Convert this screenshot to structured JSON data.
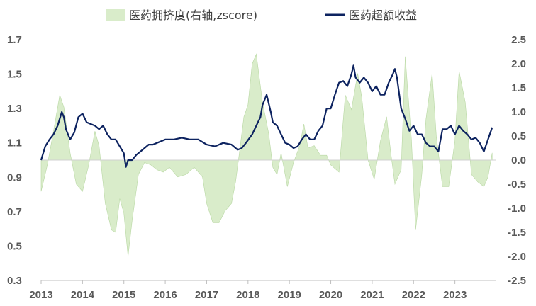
{
  "chart_data": {
    "type": "line",
    "title": "",
    "xlabel": "",
    "ylabel_left": "",
    "ylabel_right": "",
    "grid": false,
    "legend_position": "top",
    "x_ticks": [
      "2013",
      "2014",
      "2015",
      "2016",
      "2017",
      "2018",
      "2019",
      "2020",
      "2021",
      "2022",
      "2023"
    ],
    "y_left": {
      "ticks": [
        "0.3",
        "0.5",
        "0.7",
        "0.9",
        "1.1",
        "1.3",
        "1.5",
        "1.7"
      ],
      "range": [
        0.3,
        1.7
      ]
    },
    "y_right": {
      "ticks": [
        "-2.5",
        "-2.0",
        "-1.5",
        "-1.0",
        "-0.5",
        "0.0",
        "0.5",
        "1.0",
        "1.5",
        "2.0",
        "2.5"
      ],
      "range": [
        -2.5,
        2.5
      ]
    },
    "x_range": [
      2013.0,
      2024.0
    ],
    "series": [
      {
        "name": "医药拥挤度(右轴,zscore)",
        "type": "area",
        "axis": "right",
        "color": "#d9ecca",
        "x": [
          2013.0,
          2013.15,
          2013.3,
          2013.45,
          2013.55,
          2013.7,
          2013.85,
          2014.0,
          2014.15,
          2014.3,
          2014.4,
          2014.55,
          2014.7,
          2014.8,
          2014.9,
          2015.0,
          2015.1,
          2015.2,
          2015.35,
          2015.5,
          2015.65,
          2015.8,
          2015.95,
          2016.1,
          2016.3,
          2016.5,
          2016.7,
          2016.9,
          2017.0,
          2017.15,
          2017.3,
          2017.45,
          2017.6,
          2017.7,
          2017.8,
          2017.9,
          2018.0,
          2018.1,
          2018.2,
          2018.35,
          2018.5,
          2018.6,
          2018.7,
          2018.8,
          2018.95,
          2019.1,
          2019.25,
          2019.35,
          2019.45,
          2019.6,
          2019.75,
          2019.9,
          2020.0,
          2020.2,
          2020.35,
          2020.5,
          2020.65,
          2020.75,
          2020.9,
          2021.05,
          2021.2,
          2021.35,
          2021.45,
          2021.55,
          2021.7,
          2021.8,
          2021.95,
          2022.05,
          2022.2,
          2022.3,
          2022.45,
          2022.55,
          2022.7,
          2022.85,
          2023.0,
          2023.1,
          2023.25,
          2023.4,
          2023.55,
          2023.7,
          2023.8,
          2023.9
        ],
        "values": [
          -0.65,
          -0.1,
          0.6,
          1.35,
          1.1,
          0.15,
          -0.5,
          -0.65,
          -0.1,
          0.6,
          0.3,
          -0.9,
          -1.45,
          -1.5,
          -0.8,
          -1.1,
          -2.0,
          -1.25,
          -0.3,
          -0.05,
          -0.1,
          -0.2,
          -0.25,
          -0.15,
          -0.35,
          -0.3,
          -0.15,
          -0.35,
          -0.9,
          -1.3,
          -1.3,
          -1.05,
          -0.9,
          -0.45,
          0.2,
          0.9,
          1.15,
          2.0,
          2.2,
          1.2,
          0.55,
          -0.15,
          -0.3,
          0.15,
          -0.55,
          -0.05,
          0.3,
          0.75,
          0.25,
          0.3,
          0.1,
          0.1,
          -0.1,
          -0.25,
          1.35,
          1.05,
          1.8,
          1.3,
          0.0,
          -0.4,
          0.4,
          0.9,
          0.15,
          -0.5,
          -0.2,
          2.15,
          0.4,
          -1.45,
          -0.3,
          0.85,
          1.8,
          0.5,
          -0.55,
          -0.55,
          0.4,
          1.85,
          1.2,
          -0.3,
          -0.45,
          -0.55,
          -0.35,
          0.15
        ]
      },
      {
        "name": "医药超额收益",
        "type": "line",
        "axis": "left",
        "color": "#0d2360",
        "x": [
          2013.0,
          2013.1,
          2013.2,
          2013.3,
          2013.4,
          2013.5,
          2013.55,
          2013.6,
          2013.7,
          2013.8,
          2013.9,
          2014.0,
          2014.1,
          2014.2,
          2014.3,
          2014.4,
          2014.5,
          2014.6,
          2014.7,
          2014.8,
          2014.9,
          2015.0,
          2015.05,
          2015.1,
          2015.2,
          2015.3,
          2015.4,
          2015.5,
          2015.6,
          2015.7,
          2015.8,
          2015.9,
          2016.0,
          2016.2,
          2016.4,
          2016.6,
          2016.8,
          2017.0,
          2017.2,
          2017.4,
          2017.6,
          2017.75,
          2017.85,
          2017.95,
          2018.1,
          2018.2,
          2018.3,
          2018.35,
          2018.45,
          2018.55,
          2018.6,
          2018.7,
          2018.8,
          2018.9,
          2019.0,
          2019.1,
          2019.2,
          2019.3,
          2019.4,
          2019.5,
          2019.6,
          2019.7,
          2019.8,
          2019.9,
          2020.0,
          2020.1,
          2020.2,
          2020.3,
          2020.4,
          2020.5,
          2020.55,
          2020.6,
          2020.7,
          2020.8,
          2020.9,
          2021.0,
          2021.1,
          2021.2,
          2021.3,
          2021.4,
          2021.5,
          2021.55,
          2021.6,
          2021.7,
          2021.8,
          2021.9,
          2022.0,
          2022.1,
          2022.2,
          2022.3,
          2022.4,
          2022.5,
          2022.6,
          2022.7,
          2022.8,
          2022.9,
          2023.0,
          2023.1,
          2023.2,
          2023.3,
          2023.4,
          2023.5,
          2023.6,
          2023.7,
          2023.8,
          2023.9
        ],
        "values": [
          1.0,
          1.08,
          1.12,
          1.15,
          1.2,
          1.28,
          1.25,
          1.18,
          1.12,
          1.16,
          1.25,
          1.27,
          1.22,
          1.21,
          1.2,
          1.18,
          1.2,
          1.15,
          1.12,
          1.12,
          1.08,
          1.04,
          0.96,
          1.0,
          1.0,
          1.03,
          1.05,
          1.07,
          1.09,
          1.09,
          1.1,
          1.11,
          1.12,
          1.12,
          1.13,
          1.12,
          1.12,
          1.09,
          1.08,
          1.1,
          1.09,
          1.06,
          1.07,
          1.1,
          1.15,
          1.2,
          1.25,
          1.32,
          1.38,
          1.28,
          1.22,
          1.2,
          1.15,
          1.1,
          1.09,
          1.07,
          1.08,
          1.12,
          1.15,
          1.12,
          1.12,
          1.17,
          1.2,
          1.3,
          1.3,
          1.38,
          1.45,
          1.46,
          1.43,
          1.5,
          1.55,
          1.48,
          1.45,
          1.48,
          1.45,
          1.4,
          1.43,
          1.38,
          1.38,
          1.45,
          1.5,
          1.53,
          1.48,
          1.3,
          1.24,
          1.17,
          1.2,
          1.15,
          1.15,
          1.1,
          1.08,
          1.08,
          1.05,
          1.18,
          1.18,
          1.2,
          1.15,
          1.2,
          1.17,
          1.15,
          1.12,
          1.13,
          1.1,
          1.05,
          1.12,
          1.19
        ]
      }
    ]
  }
}
